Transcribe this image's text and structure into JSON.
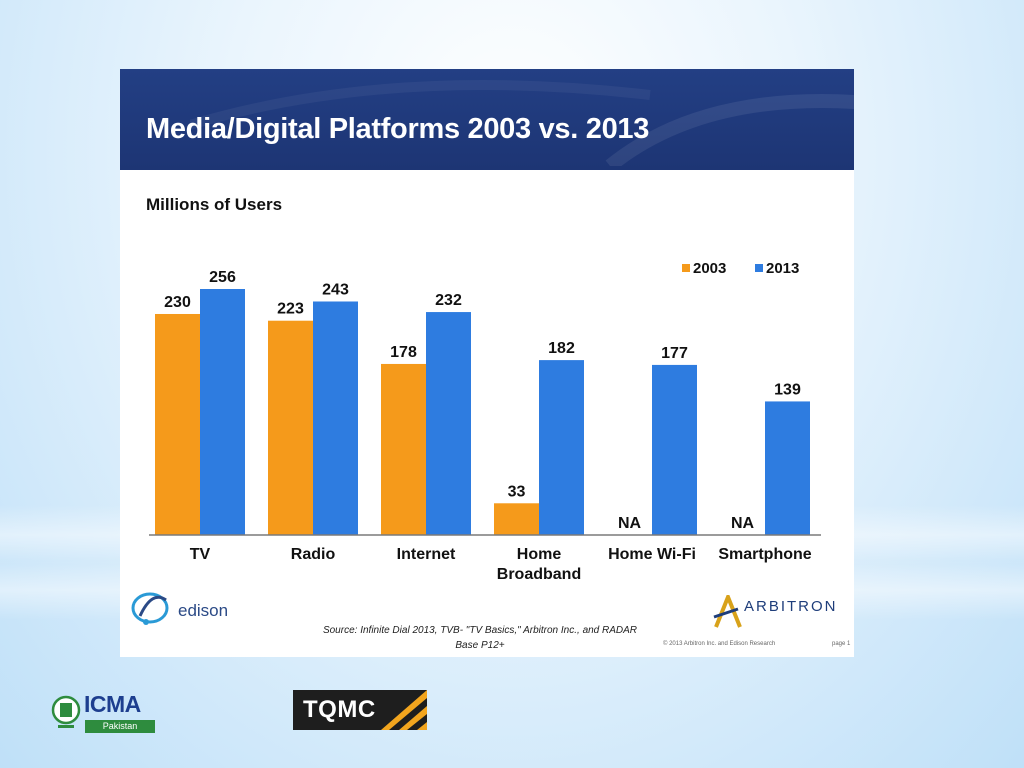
{
  "slide": {
    "title": "Media/Digital Platforms 2003 vs. 2013",
    "units_label": "Millions of Users",
    "source_line1": "Source: Infinite Dial 2013, TVB- \"TV Basics,\" Arbitron Inc., and RADAR",
    "source_line2": "Base P12+",
    "copyright": "© 2013 Arbitron Inc. and Edison Research",
    "page_number": "page 1"
  },
  "logos": {
    "edison": "edison",
    "arbitron": "ARBITRON",
    "icma": "ICMA",
    "icma_country": "Pakistan",
    "tqmc": "TQMC"
  },
  "colors": {
    "series_2003": "#f59a1b",
    "series_2013": "#2e7ce0",
    "header": "#213c80"
  },
  "chart_data": {
    "type": "bar",
    "title": "Media/Digital Platforms 2003 vs. 2013",
    "ylabel": "Millions of Users",
    "xlabel": "",
    "ylim": [
      0,
      256
    ],
    "grid": false,
    "legend": "top-right",
    "categories": [
      "TV",
      "Radio",
      "Internet",
      "Home Broadband",
      "Home Wi-Fi",
      "Smartphone"
    ],
    "series": [
      {
        "name": "2003",
        "values": [
          230,
          223,
          178,
          33,
          null,
          null
        ],
        "labels": [
          "230",
          "223",
          "178",
          "33",
          "NA",
          "NA"
        ]
      },
      {
        "name": "2013",
        "values": [
          256,
          243,
          232,
          182,
          177,
          139
        ],
        "labels": [
          "256",
          "243",
          "232",
          "182",
          "177",
          "139"
        ]
      }
    ]
  }
}
